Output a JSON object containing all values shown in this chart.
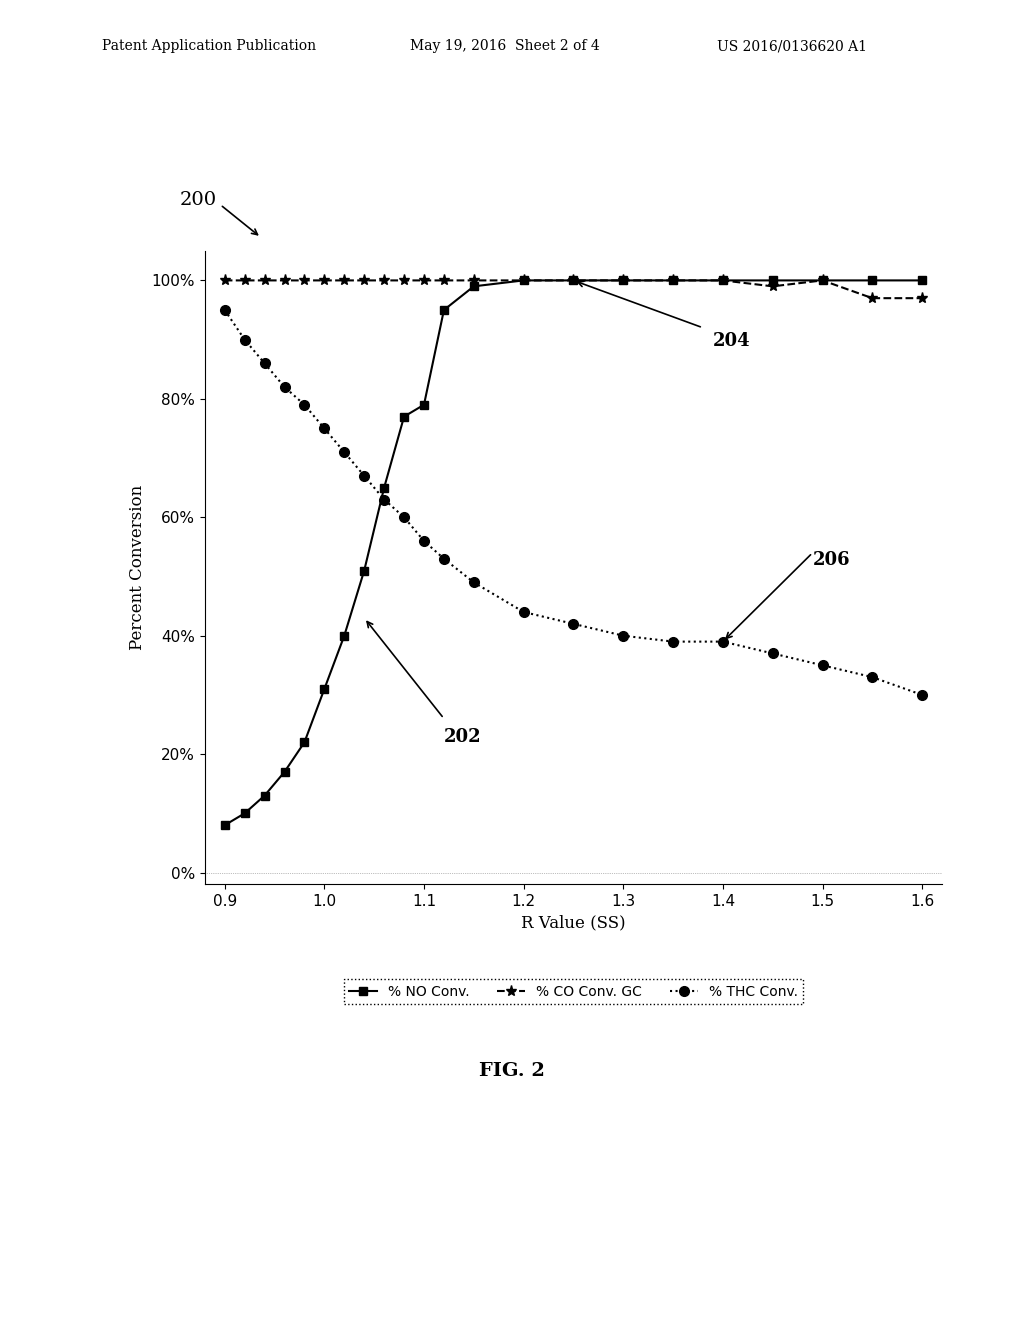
{
  "no_conv_x": [
    0.9,
    0.92,
    0.94,
    0.96,
    0.98,
    1.0,
    1.02,
    1.04,
    1.06,
    1.08,
    1.1,
    1.12,
    1.15,
    1.2,
    1.25,
    1.3,
    1.35,
    1.4,
    1.45,
    1.5,
    1.55,
    1.6
  ],
  "no_conv_y": [
    8,
    10,
    13,
    17,
    22,
    31,
    40,
    51,
    65,
    77,
    79,
    95,
    99,
    100,
    100,
    100,
    100,
    100,
    100,
    100,
    100,
    100
  ],
  "co_conv_x": [
    0.9,
    0.92,
    0.94,
    0.96,
    0.98,
    1.0,
    1.02,
    1.04,
    1.06,
    1.08,
    1.1,
    1.12,
    1.15,
    1.2,
    1.25,
    1.3,
    1.35,
    1.4,
    1.45,
    1.5,
    1.55,
    1.6
  ],
  "co_conv_y": [
    100,
    100,
    100,
    100,
    100,
    100,
    100,
    100,
    100,
    100,
    100,
    100,
    100,
    100,
    100,
    100,
    100,
    100,
    99,
    100,
    97,
    97
  ],
  "thc_conv_x": [
    0.9,
    0.92,
    0.94,
    0.96,
    0.98,
    1.0,
    1.02,
    1.04,
    1.06,
    1.08,
    1.1,
    1.12,
    1.15,
    1.2,
    1.25,
    1.3,
    1.35,
    1.4,
    1.45,
    1.5,
    1.55,
    1.6
  ],
  "thc_conv_y": [
    95,
    90,
    86,
    82,
    79,
    75,
    71,
    67,
    63,
    60,
    56,
    53,
    49,
    44,
    42,
    40,
    39,
    39,
    37,
    35,
    33,
    30
  ],
  "xlabel": "R Value (SS)",
  "ylabel": "Percent Conversion",
  "yticks": [
    0,
    20,
    40,
    60,
    80,
    100
  ],
  "ytick_labels": [
    "0%",
    "20%",
    "40%",
    "60%",
    "80%",
    "100%"
  ],
  "xticks": [
    0.9,
    1.0,
    1.1,
    1.2,
    1.3,
    1.4,
    1.5,
    1.6
  ],
  "xlim": [
    0.88,
    1.62
  ],
  "ylim": [
    -2,
    105
  ],
  "legend_labels": [
    "% NO Conv.",
    "% CO Conv. GC",
    "% THC Conv."
  ],
  "label_202": "202",
  "label_204": "204",
  "label_206": "206",
  "label_200": "200",
  "fig_label": "FIG. 2",
  "patent_header_left": "Patent Application Publication",
  "patent_header_mid": "May 19, 2016  Sheet 2 of 4",
  "patent_header_right": "US 2016/0136620 A1",
  "line_color": "#000000",
  "background_color": "#ffffff"
}
